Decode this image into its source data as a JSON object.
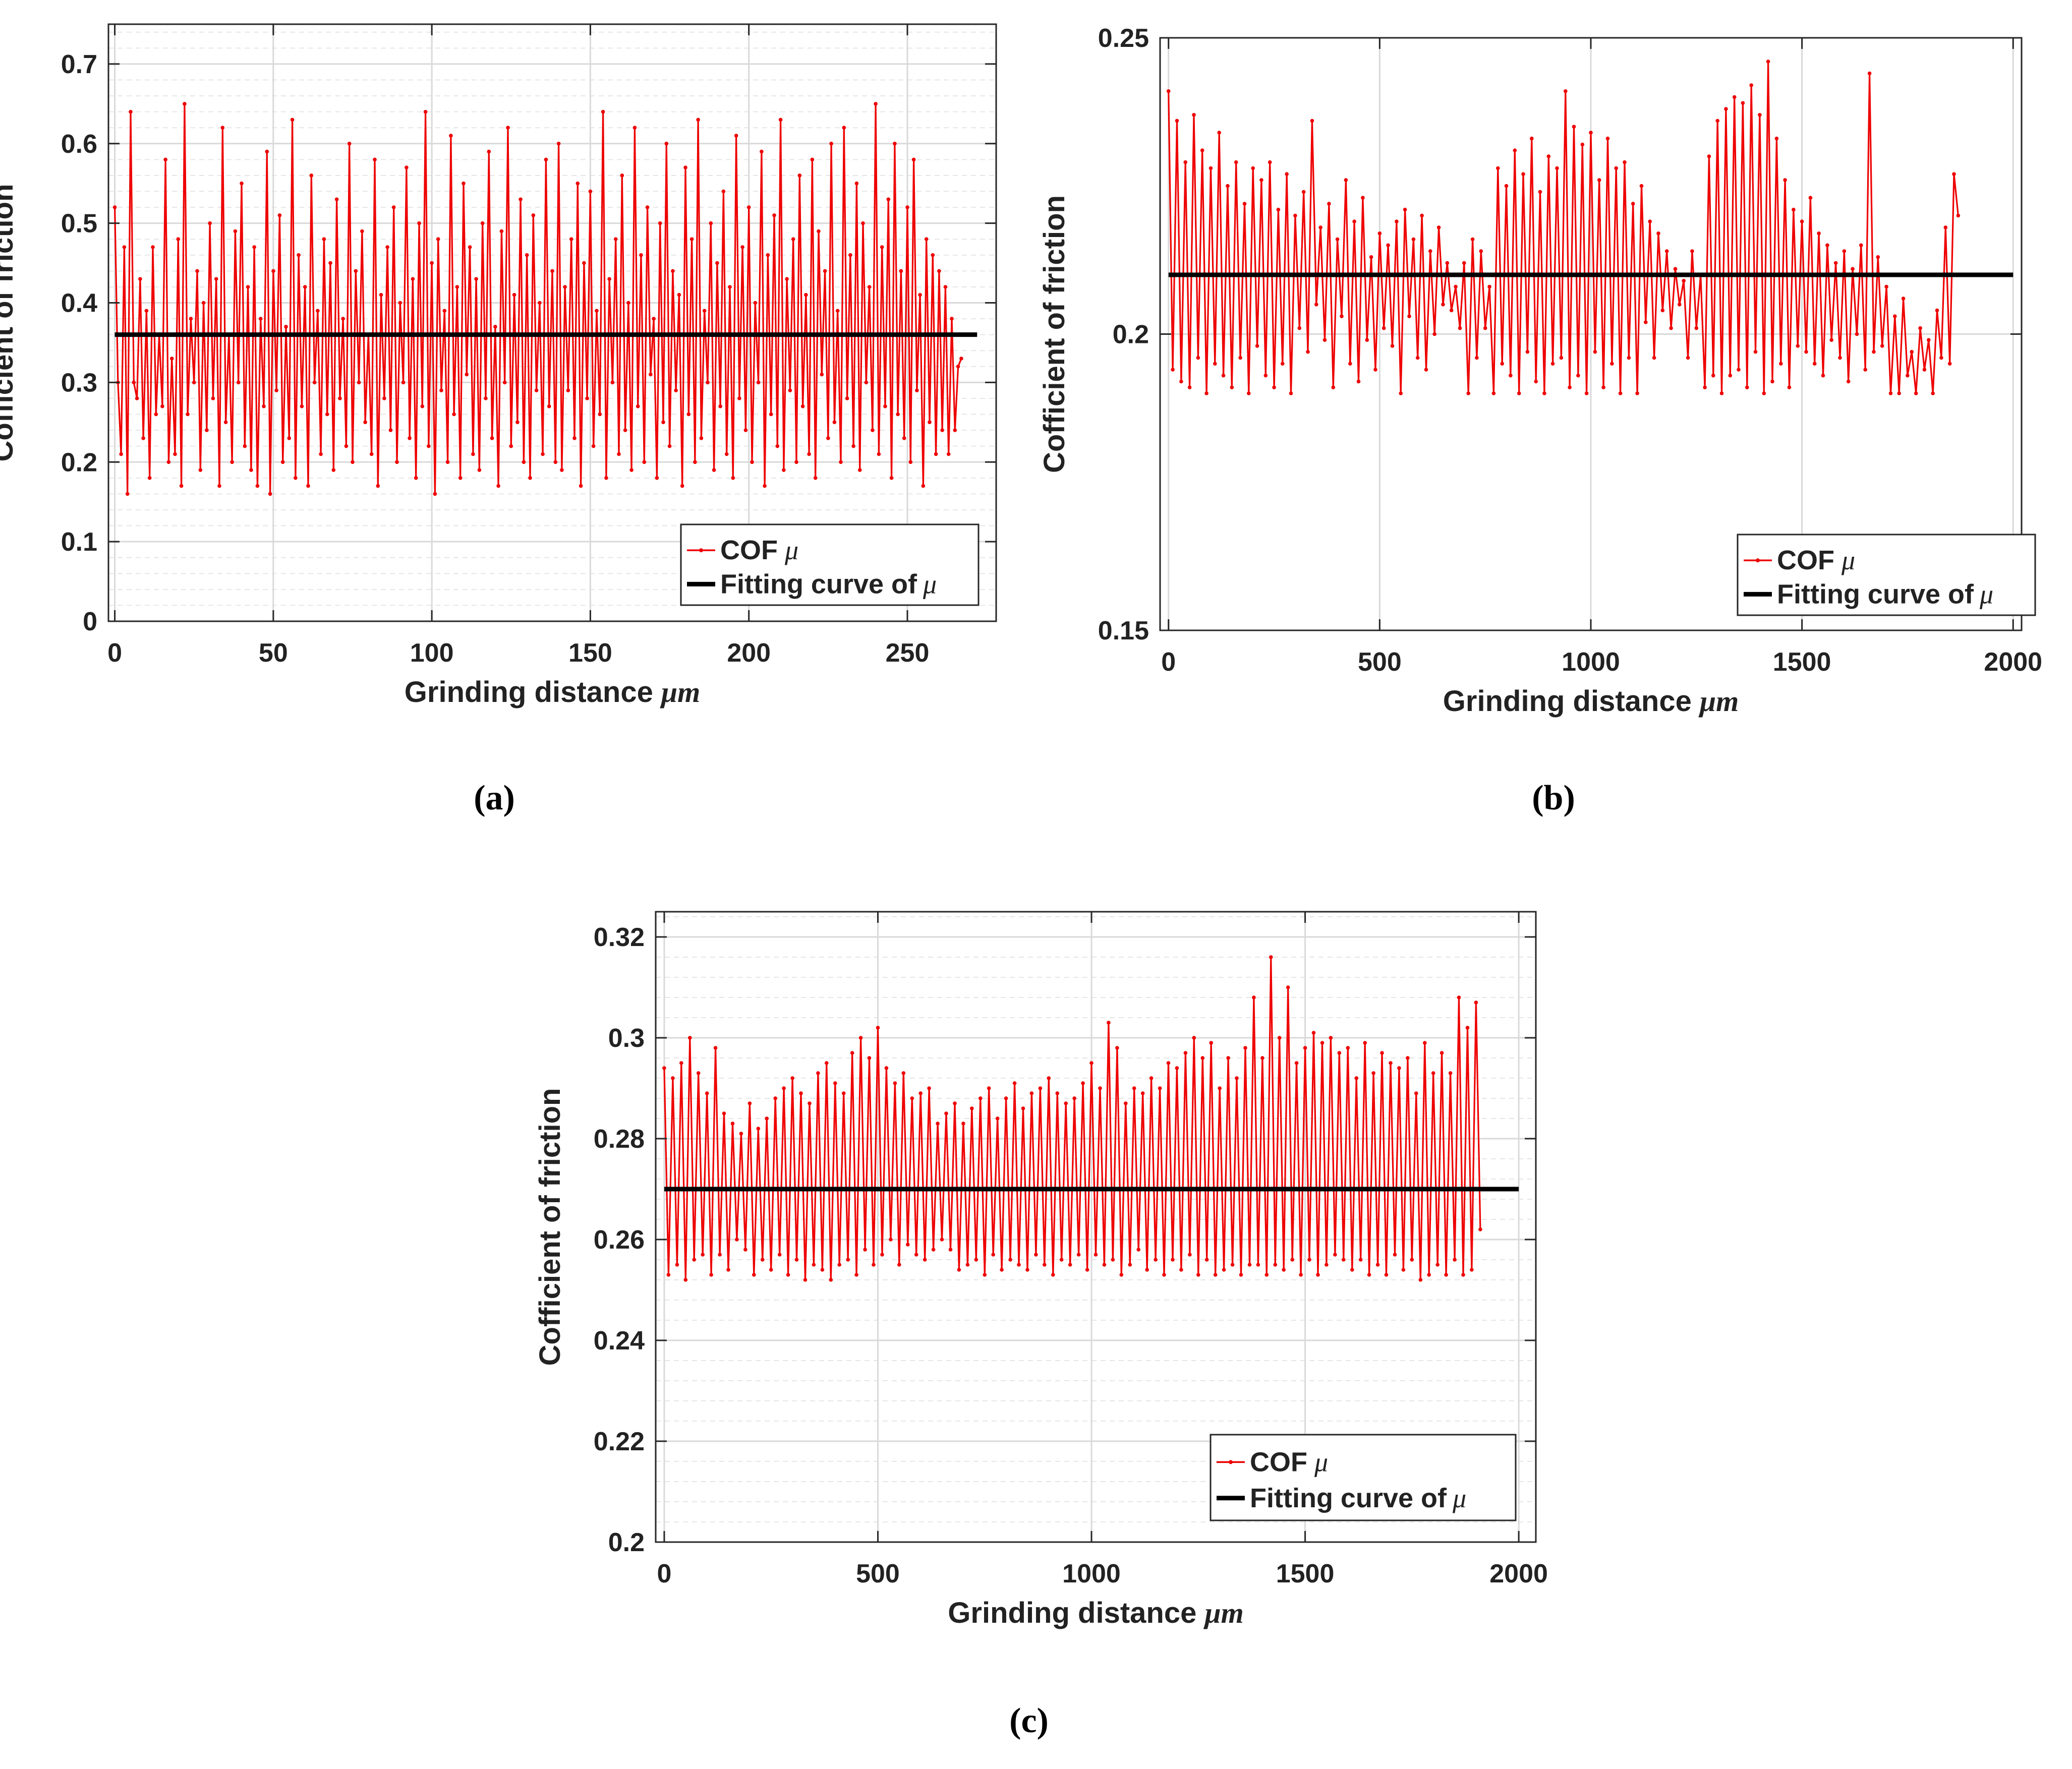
{
  "figure": {
    "panel_labels": [
      "(a)",
      "(b)",
      "(c)"
    ]
  },
  "colors": {
    "cof": "#ee0000",
    "fit": "#000000",
    "grid_major": "#d9d9d9",
    "grid_minor": "#e6e6e6",
    "axis": "#262626",
    "text": "#222222"
  },
  "chart_data": [
    {
      "type": "line",
      "panel": "(a)",
      "xlabel": "Grinding distance",
      "xunit": "μm",
      "ylabel": "Cofficient of friction",
      "xlim": [
        -2,
        278
      ],
      "ylim": [
        0,
        0.75
      ],
      "xticks": [
        0,
        50,
        100,
        150,
        200,
        250
      ],
      "yticks": [
        0,
        0.1,
        0.2,
        0.3,
        0.4,
        0.5,
        0.6,
        0.7
      ],
      "ytick_labels": [
        "0",
        "0.1",
        "0.2",
        "0.3",
        "0.4",
        "0.5",
        "0.6",
        "0.7"
      ],
      "grid": true,
      "minor_grid": true,
      "legend_position": "bottom-right",
      "series": [
        {
          "name": "COF",
          "symbol": "μ",
          "x_start": 0,
          "x_step": 1,
          "values": [
            0.52,
            0.3,
            0.21,
            0.47,
            0.16,
            0.64,
            0.3,
            0.28,
            0.43,
            0.23,
            0.39,
            0.18,
            0.47,
            0.26,
            0.36,
            0.27,
            0.58,
            0.2,
            0.33,
            0.21,
            0.48,
            0.17,
            0.65,
            0.26,
            0.38,
            0.3,
            0.44,
            0.19,
            0.4,
            0.24,
            0.5,
            0.28,
            0.43,
            0.17,
            0.62,
            0.25,
            0.36,
            0.2,
            0.49,
            0.3,
            0.55,
            0.22,
            0.42,
            0.19,
            0.47,
            0.17,
            0.38,
            0.27,
            0.59,
            0.16,
            0.44,
            0.29,
            0.51,
            0.2,
            0.37,
            0.23,
            0.63,
            0.18,
            0.46,
            0.27,
            0.42,
            0.17,
            0.56,
            0.3,
            0.39,
            0.21,
            0.48,
            0.26,
            0.45,
            0.19,
            0.53,
            0.28,
            0.38,
            0.22,
            0.6,
            0.2,
            0.44,
            0.3,
            0.49,
            0.25,
            0.36,
            0.21,
            0.58,
            0.17,
            0.41,
            0.28,
            0.47,
            0.24,
            0.52,
            0.2,
            0.4,
            0.3,
            0.57,
            0.23,
            0.43,
            0.18,
            0.5,
            0.27,
            0.64,
            0.22,
            0.45,
            0.16,
            0.48,
            0.29,
            0.39,
            0.2,
            0.61,
            0.26,
            0.42,
            0.18,
            0.55,
            0.31,
            0.47,
            0.21,
            0.43,
            0.19,
            0.5,
            0.28,
            0.59,
            0.23,
            0.37,
            0.17,
            0.49,
            0.3,
            0.62,
            0.22,
            0.41,
            0.25,
            0.53,
            0.2,
            0.46,
            0.18,
            0.51,
            0.29,
            0.4,
            0.21,
            0.58,
            0.27,
            0.44,
            0.2,
            0.6,
            0.19,
            0.42,
            0.29,
            0.48,
            0.23,
            0.55,
            0.17,
            0.45,
            0.28,
            0.54,
            0.22,
            0.39,
            0.26,
            0.64,
            0.18,
            0.43,
            0.3,
            0.48,
            0.21,
            0.56,
            0.24,
            0.4,
            0.19,
            0.62,
            0.27,
            0.46,
            0.2,
            0.52,
            0.31,
            0.38,
            0.18,
            0.5,
            0.25,
            0.6,
            0.22,
            0.44,
            0.29,
            0.41,
            0.17,
            0.57,
            0.26,
            0.48,
            0.2,
            0.63,
            0.23,
            0.39,
            0.3,
            0.5,
            0.19,
            0.45,
            0.27,
            0.54,
            0.21,
            0.42,
            0.18,
            0.61,
            0.28,
            0.47,
            0.24,
            0.52,
            0.2,
            0.4,
            0.3,
            0.59,
            0.17,
            0.46,
            0.26,
            0.51,
            0.22,
            0.63,
            0.19,
            0.43,
            0.29,
            0.48,
            0.2,
            0.56,
            0.27,
            0.41,
            0.21,
            0.58,
            0.18,
            0.49,
            0.31,
            0.44,
            0.23,
            0.6,
            0.25,
            0.39,
            0.2,
            0.62,
            0.28,
            0.46,
            0.22,
            0.55,
            0.19,
            0.5,
            0.3,
            0.42,
            0.24,
            0.65,
            0.21,
            0.47,
            0.27,
            0.53,
            0.18,
            0.6,
            0.26,
            0.44,
            0.23,
            0.52,
            0.2,
            0.58,
            0.29,
            0.41,
            0.17,
            0.48,
            0.25,
            0.46,
            0.21,
            0.44,
            0.24,
            0.42,
            0.21,
            0.38,
            0.24,
            0.32,
            0.33
          ]
        },
        {
          "name": "Fitting curve of",
          "symbol": "μ",
          "x": [
            0,
            272
          ],
          "values": [
            0.36,
            0.36
          ]
        }
      ]
    },
    {
      "type": "line",
      "panel": "(b)",
      "xlabel": "Grinding distance",
      "xunit": "μm",
      "ylabel": "Cofficient of friction",
      "xlim": [
        -20,
        2020
      ],
      "ylim": [
        0.15,
        0.25
      ],
      "xticks": [
        0,
        500,
        1000,
        1500,
        2000
      ],
      "yticks": [
        0.15,
        0.2,
        0.25
      ],
      "ytick_labels": [
        "0.15",
        "0.2",
        "0.25"
      ],
      "grid": true,
      "minor_grid": false,
      "legend_position": "bottom-right",
      "series": [
        {
          "name": "COF",
          "symbol": "μ",
          "x_start": 0,
          "x_step": 10,
          "values": [
            0.241,
            0.194,
            0.236,
            0.192,
            0.229,
            0.191,
            0.237,
            0.196,
            0.231,
            0.19,
            0.228,
            0.195,
            0.234,
            0.193,
            0.225,
            0.191,
            0.229,
            0.196,
            0.222,
            0.19,
            0.228,
            0.198,
            0.226,
            0.193,
            0.229,
            0.191,
            0.221,
            0.195,
            0.227,
            0.19,
            0.22,
            0.201,
            0.224,
            0.197,
            0.236,
            0.205,
            0.218,
            0.199,
            0.222,
            0.191,
            0.216,
            0.203,
            0.226,
            0.195,
            0.219,
            0.192,
            0.223,
            0.199,
            0.213,
            0.194,
            0.217,
            0.201,
            0.215,
            0.198,
            0.219,
            0.19,
            0.221,
            0.203,
            0.216,
            0.196,
            0.22,
            0.194,
            0.214,
            0.2,
            0.218,
            0.205,
            0.212,
            0.204,
            0.208,
            0.201,
            0.212,
            0.19,
            0.216,
            0.196,
            0.214,
            0.201,
            0.208,
            0.19,
            0.228,
            0.195,
            0.225,
            0.193,
            0.231,
            0.19,
            0.227,
            0.197,
            0.233,
            0.192,
            0.224,
            0.19,
            0.23,
            0.195,
            0.228,
            0.196,
            0.241,
            0.191,
            0.235,
            0.193,
            0.232,
            0.19,
            0.234,
            0.197,
            0.226,
            0.191,
            0.233,
            0.195,
            0.228,
            0.19,
            0.229,
            0.196,
            0.222,
            0.19,
            0.225,
            0.202,
            0.219,
            0.196,
            0.217,
            0.204,
            0.214,
            0.201,
            0.211,
            0.205,
            0.209,
            0.196,
            0.214,
            0.201,
            0.21,
            0.191,
            0.23,
            0.193,
            0.236,
            0.19,
            0.238,
            0.193,
            0.24,
            0.194,
            0.239,
            0.191,
            0.242,
            0.197,
            0.237,
            0.19,
            0.246,
            0.192,
            0.233,
            0.195,
            0.226,
            0.191,
            0.221,
            0.198,
            0.219,
            0.197,
            0.223,
            0.195,
            0.217,
            0.193,
            0.215,
            0.199,
            0.212,
            0.196,
            0.214,
            0.192,
            0.211,
            0.2,
            0.215,
            0.194,
            0.244,
            0.197,
            0.213,
            0.198,
            0.208,
            0.19,
            0.203,
            0.19,
            0.206,
            0.193,
            0.197,
            0.19,
            0.201,
            0.194,
            0.199,
            0.19,
            0.204,
            0.196,
            0.218,
            0.195,
            0.227,
            0.22
          ]
        },
        {
          "name": "Fitting curve of",
          "symbol": "μ",
          "x": [
            0,
            2000
          ],
          "values": [
            0.21,
            0.21
          ]
        }
      ]
    },
    {
      "type": "line",
      "panel": "(c)",
      "xlabel": "Grinding distance",
      "xunit": "μm",
      "ylabel": "Cofficient of friction",
      "xlim": [
        -20,
        2040
      ],
      "ylim": [
        0.2,
        0.325
      ],
      "xticks": [
        0,
        500,
        1000,
        1500,
        2000
      ],
      "yticks": [
        0.2,
        0.22,
        0.24,
        0.26,
        0.28,
        0.3,
        0.32
      ],
      "ytick_labels": [
        "0.2",
        "0.22",
        "0.24",
        "0.26",
        "0.28",
        "0.3",
        "0.32"
      ],
      "grid": true,
      "minor_grid": true,
      "legend_position": "bottom-right",
      "series": [
        {
          "name": "COF",
          "symbol": "μ",
          "x_start": 0,
          "x_step": 10,
          "values": [
            0.294,
            0.253,
            0.292,
            0.255,
            0.295,
            0.252,
            0.3,
            0.256,
            0.293,
            0.257,
            0.289,
            0.253,
            0.298,
            0.257,
            0.285,
            0.254,
            0.283,
            0.26,
            0.281,
            0.258,
            0.287,
            0.253,
            0.282,
            0.256,
            0.284,
            0.254,
            0.288,
            0.257,
            0.29,
            0.253,
            0.292,
            0.256,
            0.289,
            0.252,
            0.287,
            0.255,
            0.293,
            0.254,
            0.295,
            0.252,
            0.291,
            0.255,
            0.289,
            0.256,
            0.297,
            0.253,
            0.3,
            0.258,
            0.296,
            0.255,
            0.302,
            0.257,
            0.294,
            0.26,
            0.291,
            0.255,
            0.293,
            0.259,
            0.288,
            0.257,
            0.289,
            0.256,
            0.29,
            0.258,
            0.283,
            0.26,
            0.285,
            0.258,
            0.287,
            0.254,
            0.283,
            0.255,
            0.286,
            0.256,
            0.288,
            0.253,
            0.29,
            0.257,
            0.284,
            0.254,
            0.288,
            0.256,
            0.291,
            0.255,
            0.286,
            0.254,
            0.289,
            0.257,
            0.29,
            0.255,
            0.292,
            0.253,
            0.289,
            0.256,
            0.287,
            0.255,
            0.288,
            0.257,
            0.291,
            0.254,
            0.295,
            0.257,
            0.29,
            0.255,
            0.303,
            0.256,
            0.298,
            0.253,
            0.287,
            0.255,
            0.29,
            0.258,
            0.289,
            0.254,
            0.292,
            0.256,
            0.29,
            0.253,
            0.295,
            0.256,
            0.294,
            0.254,
            0.297,
            0.257,
            0.3,
            0.253,
            0.296,
            0.256,
            0.299,
            0.253,
            0.29,
            0.254,
            0.296,
            0.255,
            0.292,
            0.253,
            0.298,
            0.255,
            0.308,
            0.255,
            0.296,
            0.253,
            0.316,
            0.255,
            0.3,
            0.254,
            0.31,
            0.256,
            0.295,
            0.253,
            0.298,
            0.256,
            0.301,
            0.253,
            0.299,
            0.255,
            0.3,
            0.257,
            0.297,
            0.256,
            0.298,
            0.254,
            0.292,
            0.256,
            0.299,
            0.253,
            0.293,
            0.255,
            0.297,
            0.253,
            0.295,
            0.257,
            0.294,
            0.254,
            0.296,
            0.256,
            0.289,
            0.252,
            0.299,
            0.253,
            0.293,
            0.255,
            0.297,
            0.253,
            0.293,
            0.256,
            0.308,
            0.253,
            0.302,
            0.254,
            0.307,
            0.262
          ]
        },
        {
          "name": "Fitting curve of",
          "symbol": "μ",
          "x": [
            0,
            2000
          ],
          "values": [
            0.27,
            0.27
          ]
        }
      ]
    }
  ]
}
